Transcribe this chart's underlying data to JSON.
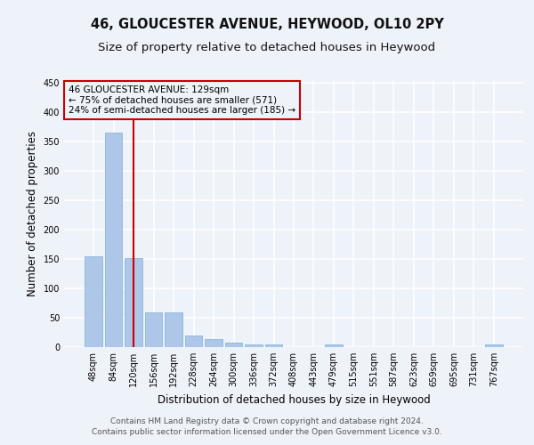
{
  "title": "46, GLOUCESTER AVENUE, HEYWOOD, OL10 2PY",
  "subtitle": "Size of property relative to detached houses in Heywood",
  "xlabel": "Distribution of detached houses by size in Heywood",
  "ylabel": "Number of detached properties",
  "categories": [
    "48sqm",
    "84sqm",
    "120sqm",
    "156sqm",
    "192sqm",
    "228sqm",
    "264sqm",
    "300sqm",
    "336sqm",
    "372sqm",
    "408sqm",
    "443sqm",
    "479sqm",
    "515sqm",
    "551sqm",
    "587sqm",
    "623sqm",
    "659sqm",
    "695sqm",
    "731sqm",
    "767sqm"
  ],
  "values": [
    155,
    365,
    152,
    59,
    59,
    20,
    13,
    7,
    4,
    4,
    0,
    0,
    5,
    0,
    0,
    0,
    0,
    0,
    0,
    0,
    4
  ],
  "bar_color": "#aec6e8",
  "bar_edge_color": "#7bafd4",
  "annotation_box_text": "46 GLOUCESTER AVENUE: 129sqm\n← 75% of detached houses are smaller (571)\n24% of semi-detached houses are larger (185) →",
  "annotation_box_color": "#cc0000",
  "vline_x_index": 2,
  "vline_color": "#cc0000",
  "ylim": [
    0,
    455
  ],
  "yticks": [
    0,
    50,
    100,
    150,
    200,
    250,
    300,
    350,
    400,
    450
  ],
  "footer": "Contains HM Land Registry data © Crown copyright and database right 2024.\nContains public sector information licensed under the Open Government Licence v3.0.",
  "background_color": "#eef2f9",
  "grid_color": "#ffffff",
  "title_fontsize": 10.5,
  "subtitle_fontsize": 9.5,
  "axis_label_fontsize": 8.5,
  "tick_fontsize": 7,
  "footer_fontsize": 6.5,
  "ann_fontsize": 7.5
}
